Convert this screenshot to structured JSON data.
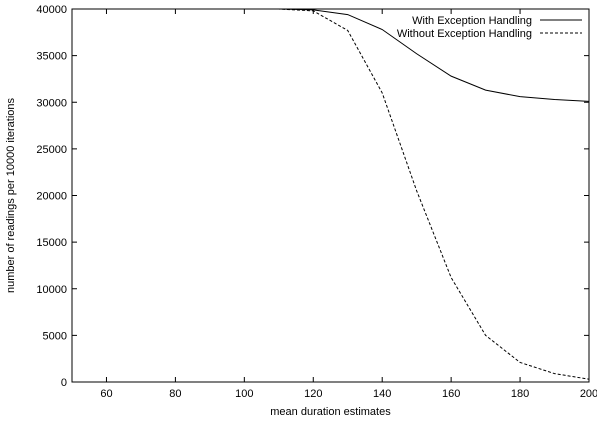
{
  "chart_data": {
    "type": "line",
    "title": "",
    "xlabel": "mean duration estimates",
    "ylabel": "number of readings per 10000 iterations",
    "xlim": [
      50,
      200
    ],
    "ylim": [
      0,
      40000
    ],
    "xticks": [
      60,
      80,
      100,
      120,
      140,
      160,
      180,
      200
    ],
    "yticks": [
      0,
      5000,
      10000,
      15000,
      20000,
      25000,
      30000,
      35000,
      40000
    ],
    "grid": false,
    "legend_position": "top-right",
    "series": [
      {
        "name": "With Exception Handling",
        "style": "solid",
        "color": "#000000",
        "x": [
          50,
          60,
          70,
          80,
          90,
          100,
          110,
          120,
          130,
          140,
          150,
          160,
          170,
          180,
          190,
          200
        ],
        "y": [
          40000,
          40000,
          40000,
          40000,
          40000,
          40000,
          40000,
          39900,
          39400,
          37800,
          35200,
          32800,
          31300,
          30600,
          30300,
          30100
        ]
      },
      {
        "name": "Without Exception Handling",
        "style": "dashed",
        "color": "#000000",
        "x": [
          50,
          60,
          70,
          80,
          90,
          100,
          110,
          120,
          130,
          140,
          150,
          160,
          170,
          180,
          190,
          200
        ],
        "y": [
          40000,
          40000,
          40000,
          40000,
          40000,
          40000,
          40000,
          39800,
          37700,
          31000,
          20500,
          11200,
          5000,
          2100,
          900,
          300
        ]
      }
    ]
  }
}
